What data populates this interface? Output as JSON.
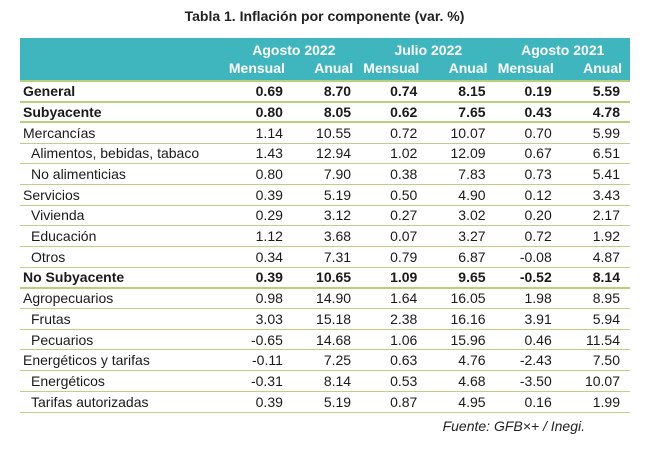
{
  "title": "Tabla 1. Inflación por componente (var. %)",
  "periods": [
    "Agosto 2022",
    "Julio 2022",
    "Agosto 2021"
  ],
  "subheaders": [
    "Mensual",
    "Anual",
    "Mensual",
    "Anual",
    "Mensual",
    "Anual"
  ],
  "rows": [
    {
      "label": "General",
      "bold": true,
      "indent": false,
      "values": [
        "0.69",
        "8.70",
        "0.74",
        "8.15",
        "0.19",
        "5.59"
      ]
    },
    {
      "label": "Subyacente",
      "bold": true,
      "indent": false,
      "values": [
        "0.80",
        "8.05",
        "0.62",
        "7.65",
        "0.43",
        "4.78"
      ]
    },
    {
      "label": "Mercancías",
      "bold": false,
      "indent": false,
      "values": [
        "1.14",
        "10.55",
        "0.72",
        "10.07",
        "0.70",
        "5.99"
      ]
    },
    {
      "label": "Alimentos, bebidas, tabaco",
      "bold": false,
      "indent": true,
      "values": [
        "1.43",
        "12.94",
        "1.02",
        "12.09",
        "0.67",
        "6.51"
      ]
    },
    {
      "label": "No alimenticias",
      "bold": false,
      "indent": true,
      "values": [
        "0.80",
        "7.90",
        "0.38",
        "7.83",
        "0.73",
        "5.41"
      ]
    },
    {
      "label": "Servicios",
      "bold": false,
      "indent": false,
      "values": [
        "0.39",
        "5.19",
        "0.50",
        "4.90",
        "0.12",
        "3.43"
      ]
    },
    {
      "label": "Vivienda",
      "bold": false,
      "indent": true,
      "values": [
        "0.29",
        "3.12",
        "0.27",
        "3.02",
        "0.20",
        "2.17"
      ]
    },
    {
      "label": "Educación",
      "bold": false,
      "indent": true,
      "values": [
        "1.12",
        "3.68",
        "0.07",
        "3.27",
        "0.72",
        "1.92"
      ]
    },
    {
      "label": "Otros",
      "bold": false,
      "indent": true,
      "values": [
        "0.34",
        "7.31",
        "0.79",
        "6.87",
        "-0.08",
        "4.87"
      ]
    },
    {
      "label": "No Subyacente",
      "bold": true,
      "indent": false,
      "values": [
        "0.39",
        "10.65",
        "1.09",
        "9.65",
        "-0.52",
        "8.14"
      ]
    },
    {
      "label": "Agropecuarios",
      "bold": false,
      "indent": false,
      "values": [
        "0.98",
        "14.90",
        "1.64",
        "16.05",
        "1.98",
        "8.95"
      ]
    },
    {
      "label": "Frutas",
      "bold": false,
      "indent": true,
      "values": [
        "3.03",
        "15.18",
        "2.38",
        "16.16",
        "3.91",
        "5.94"
      ]
    },
    {
      "label": "Pecuarios",
      "bold": false,
      "indent": true,
      "values": [
        "-0.65",
        "14.68",
        "1.06",
        "15.96",
        "0.46",
        "11.54"
      ]
    },
    {
      "label": "Energéticos y tarifas",
      "bold": false,
      "indent": false,
      "values": [
        "-0.11",
        "7.25",
        "0.63",
        "4.76",
        "-2.43",
        "7.50"
      ]
    },
    {
      "label": "Energéticos",
      "bold": false,
      "indent": true,
      "values": [
        "-0.31",
        "8.14",
        "0.53",
        "4.68",
        "-3.50",
        "10.07"
      ]
    },
    {
      "label": "Tarifas autorizadas",
      "bold": false,
      "indent": true,
      "values": [
        "0.39",
        "5.19",
        "0.87",
        "4.95",
        "0.16",
        "1.99"
      ]
    }
  ],
  "source": "Fuente: GFB×+ /  Inegi.",
  "colors": {
    "header_bg": "#3fb5bd",
    "header_text": "#ffffff",
    "rule": "#b9cf79"
  }
}
